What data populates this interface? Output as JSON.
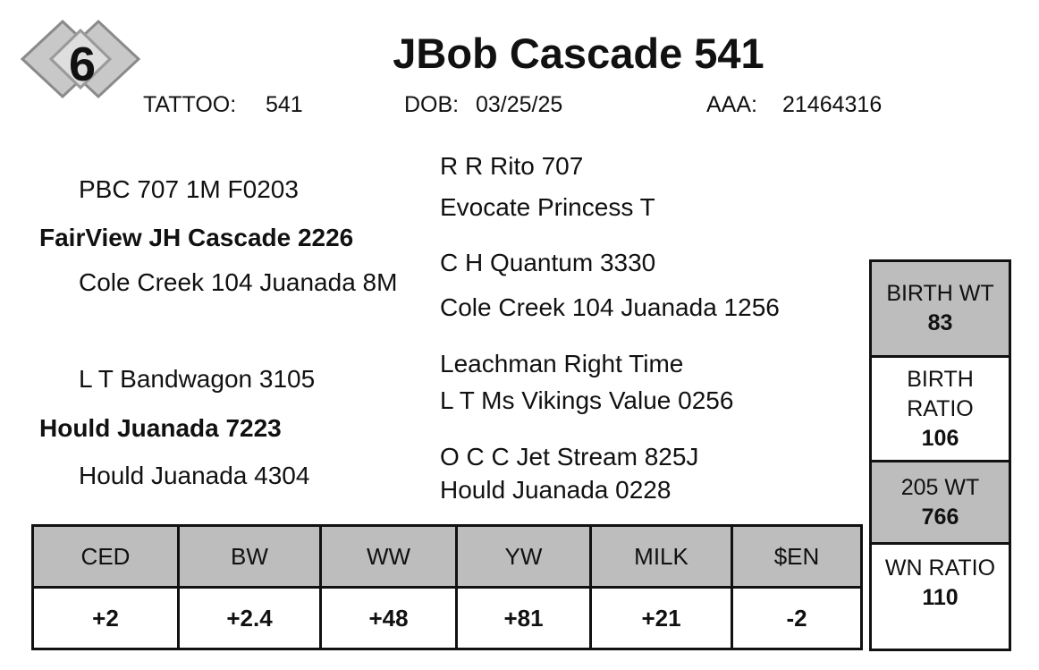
{
  "lot": "6",
  "title": "JBob Cascade 541",
  "ids": [
    {
      "label": "TATTOO:",
      "value": "541"
    },
    {
      "label": "DOB:",
      "value": "03/25/25"
    },
    {
      "label": "AAA:",
      "value": "21464316"
    }
  ],
  "pedigree": {
    "sire": {
      "name": "FairView JH Cascade 2226",
      "sire": {
        "name": "PBC 707 1M F0203",
        "sire": "R R Rito 707",
        "dam": "Evocate Princess T"
      },
      "dam": {
        "name": "Cole Creek 104 Juanada 8M",
        "sire": "C H Quantum 3330",
        "dam": "Cole Creek 104 Juanada 1256"
      }
    },
    "dam": {
      "name": "Hould Juanada 7223",
      "sire": {
        "name": "L T Bandwagon 3105",
        "sire": "Leachman Right Time",
        "dam": "L T Ms Vikings Value 0256"
      },
      "dam": {
        "name": "Hould Juanada 4304",
        "sire": "O C C Jet Stream 825J",
        "dam": "Hould Juanada 0228"
      }
    }
  },
  "epds": {
    "headers": [
      "CED",
      "BW",
      "WW",
      "YW",
      "MILK",
      "$EN"
    ],
    "values": [
      "+2",
      "+2.4",
      "+48",
      "+81",
      "+21",
      "-2"
    ]
  },
  "performance": [
    {
      "label": "BIRTH WT",
      "value": 83
    },
    {
      "label": "BIRTH RATIO",
      "value": 106
    },
    {
      "label": "205 WT",
      "value": 766
    },
    {
      "label": "WN RATIO",
      "value": 110
    }
  ]
}
